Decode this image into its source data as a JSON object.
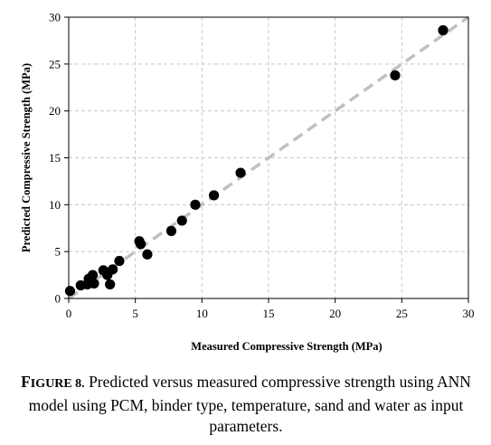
{
  "chart_data": {
    "type": "scatter",
    "title": "",
    "xlabel": "Measured Compressive Strength (MPa)",
    "ylabel": "Predicted Compressive Strength (MPa)",
    "xlim": [
      0,
      30
    ],
    "ylim": [
      0,
      30
    ],
    "xticks": [
      0,
      5,
      10,
      15,
      20,
      25,
      30
    ],
    "yticks": [
      0,
      5,
      10,
      15,
      20,
      25,
      30
    ],
    "grid": true,
    "reference_line": {
      "from": [
        0,
        0
      ],
      "to": [
        30,
        30
      ],
      "style": "dashed",
      "color": "#c0c0c0"
    },
    "marker_color": "#000000",
    "points": [
      {
        "x": 0.1,
        "y": 0.8
      },
      {
        "x": 0.9,
        "y": 1.4
      },
      {
        "x": 1.4,
        "y": 1.5
      },
      {
        "x": 1.5,
        "y": 2.1
      },
      {
        "x": 1.8,
        "y": 2.5
      },
      {
        "x": 1.9,
        "y": 1.6
      },
      {
        "x": 2.6,
        "y": 3.0
      },
      {
        "x": 2.9,
        "y": 2.5
      },
      {
        "x": 3.1,
        "y": 1.5
      },
      {
        "x": 3.3,
        "y": 3.1
      },
      {
        "x": 3.8,
        "y": 4.0
      },
      {
        "x": 5.3,
        "y": 6.1
      },
      {
        "x": 5.4,
        "y": 5.8
      },
      {
        "x": 5.9,
        "y": 4.7
      },
      {
        "x": 7.7,
        "y": 7.2
      },
      {
        "x": 8.5,
        "y": 8.3
      },
      {
        "x": 9.5,
        "y": 10.0
      },
      {
        "x": 10.9,
        "y": 11.0
      },
      {
        "x": 12.9,
        "y": 13.4
      },
      {
        "x": 24.5,
        "y": 23.8
      },
      {
        "x": 28.1,
        "y": 28.6
      }
    ]
  },
  "caption": {
    "label_initial": "F",
    "label_rest": "IGURE 8.",
    "text": "Predicted versus measured compressive strength using ANN model using PCM, binder type, temperature, sand and water as input parameters."
  }
}
